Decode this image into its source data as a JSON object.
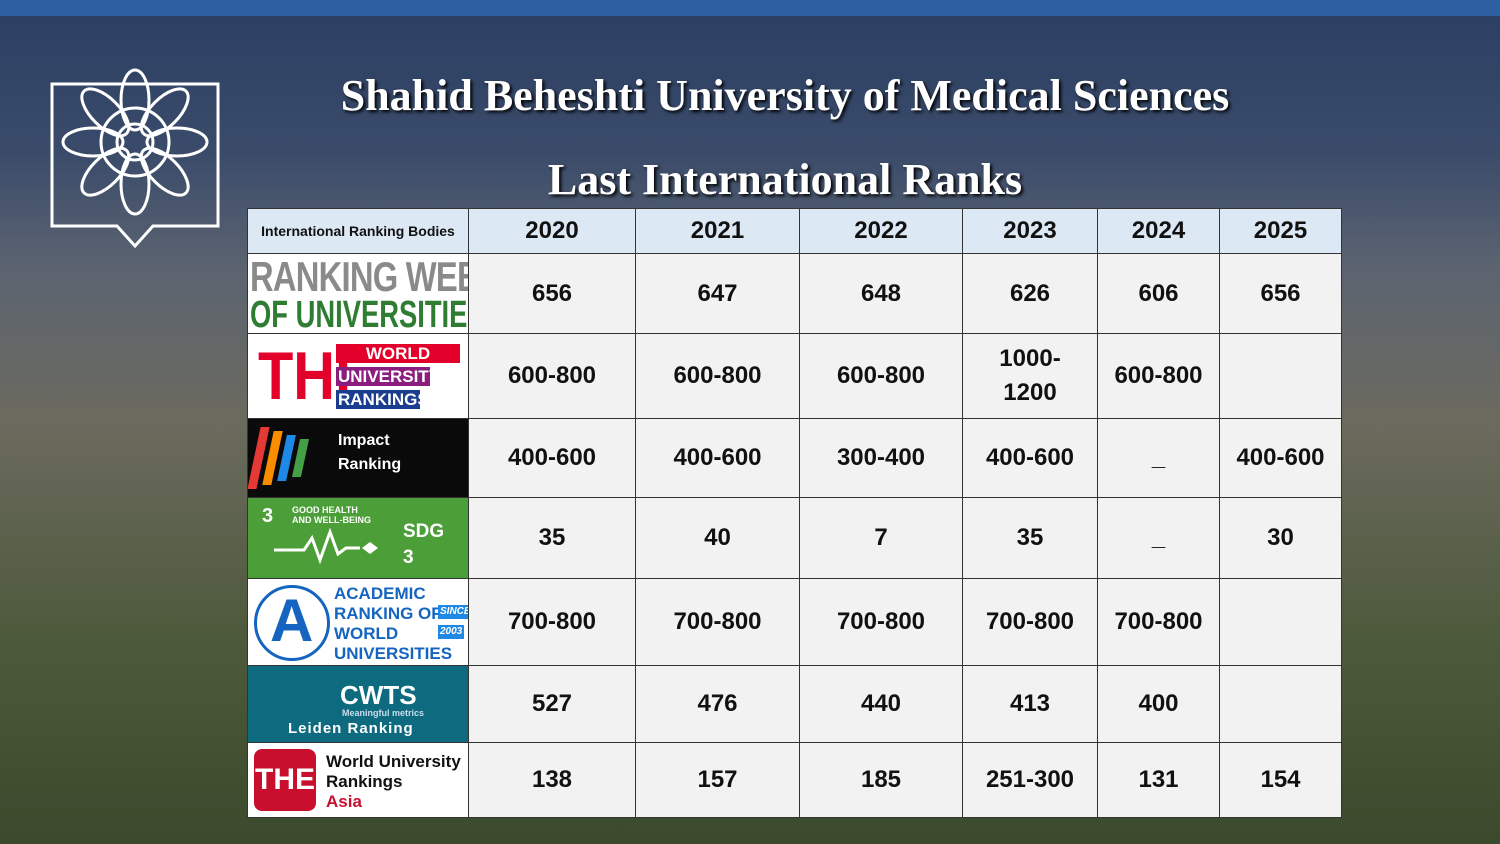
{
  "header": {
    "title": "Shahid Beheshti University of Medical Sciences",
    "subtitle": "Last International Ranks"
  },
  "table": {
    "columns": [
      "International Ranking Bodies",
      "2020",
      "2021",
      "2022",
      "2023",
      "2024",
      "2025"
    ],
    "rows": [
      {
        "logo": [
          "RANKING WEB",
          "OF UNIVERSITIES"
        ],
        "ranks": [
          656,
          647,
          648,
          626,
          606,
          656
        ]
      },
      {
        "logo": [
          "THE",
          "WORLD",
          "UNIVERSITY",
          "RANKINGS"
        ],
        "ranks": [
          "600-800",
          "600-800",
          "600-800",
          "1000-1200",
          "600-800",
          null
        ]
      },
      {
        "logo": [
          "Impact",
          "Ranking"
        ],
        "ranks": [
          "400-600",
          "400-600",
          "300-400",
          "400-600",
          "_",
          "400-600"
        ]
      },
      {
        "logo": [
          "3",
          "GOOD HEALTH",
          "AND WELL-BEING",
          "SDG",
          "3"
        ],
        "ranks": [
          35,
          40,
          7,
          35,
          "_",
          30
        ]
      },
      {
        "logo": [
          "A",
          "ACADEMIC",
          "RANKING OF",
          "WORLD",
          "UNIVERSITIES",
          "SINCE",
          "2003"
        ],
        "ranks": [
          "700-800",
          "700-800",
          "700-800",
          "700-800",
          "700-800",
          null
        ]
      },
      {
        "logo": [
          "CWTS",
          "Meaningful metrics",
          "Leiden Ranking"
        ],
        "ranks": [
          527,
          476,
          440,
          413,
          400,
          null
        ]
      },
      {
        "logo": [
          "THE",
          "World University",
          "Rankings",
          "Asia"
        ],
        "ranks": [
          138,
          157,
          185,
          "251-300",
          131,
          154
        ]
      }
    ]
  }
}
